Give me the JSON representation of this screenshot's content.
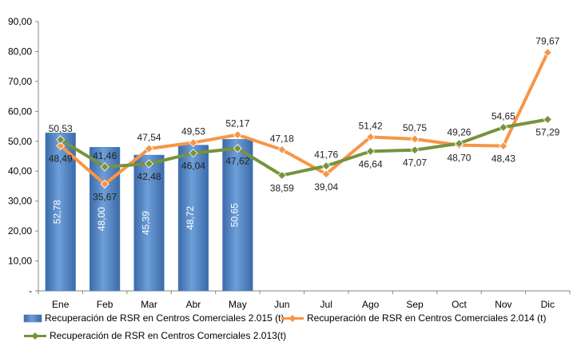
{
  "chart_data": {
    "type": "bar",
    "categories": [
      "Ene",
      "Feb",
      "Mar",
      "Abr",
      "May",
      "Jun",
      "Jul",
      "Ago",
      "Sep",
      "Oct",
      "Nov",
      "Dic"
    ],
    "ylim": [
      0,
      90
    ],
    "yticks": [
      "-",
      "10,00",
      "20,00",
      "30,00",
      "40,00",
      "50,00",
      "60,00",
      "70,00",
      "80,00",
      "90,00"
    ],
    "grid": false,
    "legend_position": "bottom",
    "series": [
      {
        "name": "Recuperación de RSR en Centros Comerciales 2.015 (t)",
        "kind": "bar",
        "color": "#4F81BD",
        "values": [
          52.78,
          48.0,
          45.39,
          48.72,
          50.65,
          null,
          null,
          null,
          null,
          null,
          null,
          null
        ],
        "labels": [
          "52,78",
          "48,00",
          "45,39",
          "48,72",
          "50,65",
          "",
          "",
          "",
          "",
          "",
          "",
          ""
        ]
      },
      {
        "name": "Recuperación de RSR en Centros Comerciales 2.014 (t)",
        "kind": "line",
        "color": "#F79646",
        "values": [
          48.49,
          35.67,
          47.54,
          49.53,
          52.17,
          47.18,
          39.04,
          51.42,
          50.75,
          48.7,
          48.43,
          79.67
        ],
        "labels": [
          "48,49",
          "35,67",
          "47,54",
          "49,53",
          "52,17",
          "47,18",
          "39,04",
          "51,42",
          "50,75",
          "48,70",
          "48,43",
          "79,67"
        ]
      },
      {
        "name": "Recuperación de RSR en Centros Comerciales 2.013(t)",
        "kind": "line",
        "color": "#77933C",
        "values": [
          50.53,
          41.46,
          42.48,
          46.04,
          47.62,
          38.59,
          41.76,
          46.64,
          47.07,
          49.26,
          54.65,
          57.29
        ],
        "labels": [
          "50,53",
          "41,46",
          "42,48",
          "46,04",
          "47,62",
          "38,59",
          "41,76",
          "46,64",
          "47,07",
          "49,26",
          "54,65",
          "57,29"
        ]
      }
    ]
  }
}
